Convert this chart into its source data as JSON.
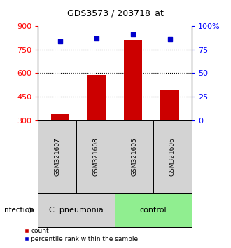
{
  "title": "GDS3573 / 203718_at",
  "samples": [
    "GSM321607",
    "GSM321608",
    "GSM321605",
    "GSM321606"
  ],
  "bar_values": [
    340,
    590,
    810,
    490
  ],
  "percentile_values": [
    84,
    87,
    91,
    86
  ],
  "bar_color": "#cc0000",
  "percentile_color": "#0000cc",
  "ylim_left": [
    300,
    900
  ],
  "ylim_right": [
    0,
    100
  ],
  "yticks_left": [
    300,
    450,
    600,
    750,
    900
  ],
  "yticks_right": [
    0,
    25,
    50,
    75,
    100
  ],
  "ytick_labels_right": [
    "0",
    "25",
    "50",
    "75",
    "100%"
  ],
  "gridlines_at": [
    450,
    600,
    750
  ],
  "groups": [
    {
      "label": "C. pneumonia",
      "indices": [
        0,
        1
      ],
      "color": "#d3d3d3"
    },
    {
      "label": "control",
      "indices": [
        2,
        3
      ],
      "color": "#90ee90"
    }
  ],
  "infection_label": "infection",
  "legend_count_label": "count",
  "legend_pct_label": "percentile rank within the sample",
  "bar_width": 0.5,
  "fig_width": 3.3,
  "fig_height": 3.54,
  "dpi": 100
}
